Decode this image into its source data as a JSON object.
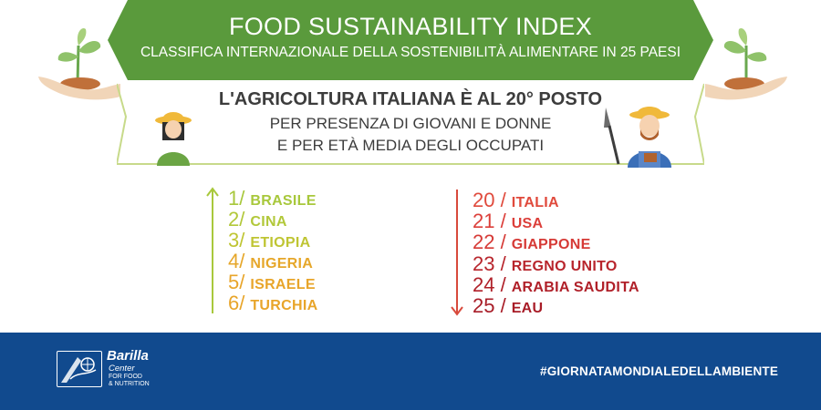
{
  "header": {
    "title": "FOOD SUSTAINABILITY INDEX",
    "subtitle": "CLASSIFICA INTERNAZIONALE DELLA SOSTENIBILITÀ ALIMENTARE IN 25 PAESI"
  },
  "highlight": {
    "title": "L'AGRICOLTURA ITALIANA È AL 20° POSTO",
    "line1": "PER PRESENZA DI GIOVANI E DONNE",
    "line2": "E PER ETÀ MEDIA DEGLI OCCUPATI"
  },
  "top_ranking": [
    {
      "rank": "1/",
      "country": "BRASILE",
      "color": "#a8c83c"
    },
    {
      "rank": "2/",
      "country": "CINA",
      "color": "#b2c83a"
    },
    {
      "rank": "3/",
      "country": "ETIOPIA",
      "color": "#bfc533"
    },
    {
      "rank": "4/",
      "country": "NIGERIA",
      "color": "#e6a72a"
    },
    {
      "rank": "5/",
      "country": "ISRAELE",
      "color": "#e8a52a"
    },
    {
      "rank": "6/",
      "country": "TURCHIA",
      "color": "#e8a52a"
    }
  ],
  "bottom_ranking": [
    {
      "rank": "20 /",
      "country": "ITALIA",
      "color": "#e04a3c"
    },
    {
      "rank": "21 /",
      "country": "USA",
      "color": "#dc3f3a"
    },
    {
      "rank": "22 /",
      "country": "GIAPPONE",
      "color": "#d63a36"
    },
    {
      "rank": "23 /",
      "country": "REGNO UNITO",
      "color": "#b8252c"
    },
    {
      "rank": "24 /",
      "country": "ARABIA SAUDITA",
      "color": "#b02029"
    },
    {
      "rank": "25 /",
      "country": "EAU",
      "color": "#a81c27"
    }
  ],
  "footer": {
    "brand": "Barilla",
    "center": "Center",
    "ffn_line1": "FOR FOOD",
    "ffn_line2": "& NUTRITION",
    "hashtag": "#GIORNATAMONDIALEDELLAMBIENTE"
  },
  "colors": {
    "banner_green": "#5a9a3c",
    "panel_border": "#c7da8a",
    "footer_blue": "#114a8e",
    "up_arrow": "#a8c83c",
    "down_arrow": "#d84a3c"
  }
}
